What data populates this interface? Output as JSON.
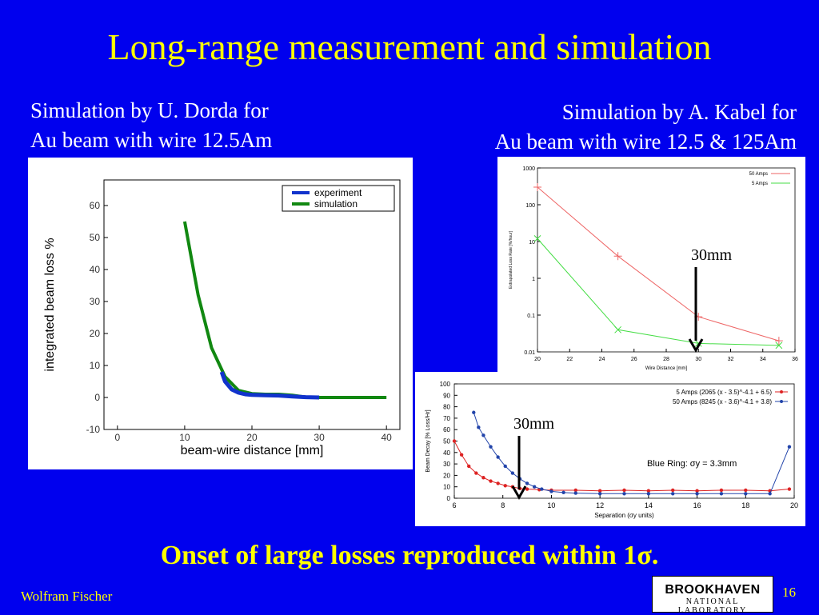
{
  "slide": {
    "title": "Long-range measurement and simulation",
    "caption_left": [
      "Simulation by U. Dorda for",
      "Au beam with wire 12.5Am"
    ],
    "caption_right": [
      "Simulation by A. Kabel for",
      "Au beam with wire 12.5 & 125Am"
    ],
    "bottom_text": "Onset of large losses reproduced within 1σ.",
    "author": "Wolfram Fischer",
    "page_number": "16",
    "logo": {
      "top": "BROOKHAVEN",
      "bottom": "NATIONAL LABORATORY"
    },
    "annotation_30mm": "30mm"
  },
  "chart_data": [
    {
      "type": "line",
      "xlabel": "beam-wire distance [mm]",
      "ylabel": "integrated beam loss %",
      "xlim": [
        -2,
        42
      ],
      "ylim": [
        -10,
        68
      ],
      "xticks": [
        0,
        10,
        20,
        30,
        40
      ],
      "yticks": [
        -10,
        0,
        10,
        20,
        30,
        40,
        50,
        60
      ],
      "grid": false,
      "legend": "top-right",
      "series": [
        {
          "name": "experiment",
          "color": "#1133cc",
          "x": [
            15.5,
            16,
            17,
            18,
            19,
            20,
            22,
            24,
            26,
            28,
            30
          ],
          "y": [
            8,
            5,
            2.5,
            1.5,
            1,
            0.8,
            0.7,
            0.6,
            0.3,
            0.1,
            0
          ]
        },
        {
          "name": "simulation",
          "color": "#118811",
          "x": [
            10,
            12,
            14,
            16,
            18,
            20,
            22,
            24,
            26,
            28,
            30,
            35,
            40
          ],
          "y": [
            55,
            32,
            15.5,
            6.5,
            2.2,
            1.2,
            1.0,
            1.0,
            0.7,
            0.1,
            0,
            0,
            0
          ]
        }
      ]
    },
    {
      "type": "line",
      "xlabel": "Wire Distance [mm]",
      "ylabel": "Extrapolated Loss Rate [%/hour]",
      "xlim": [
        20,
        36
      ],
      "ylim": [
        0.01,
        1000
      ],
      "yscale": "log",
      "xticks": [
        20,
        22,
        24,
        26,
        28,
        30,
        32,
        34,
        36
      ],
      "yticks": [
        0.01,
        0.1,
        1,
        10,
        100,
        1000
      ],
      "yticklabels": [
        "0.01",
        "0.1",
        "1",
        "10",
        "100",
        "1000"
      ],
      "legend": "top-right",
      "series": [
        {
          "name": "50 Amps",
          "color": "#ee6666",
          "marker": "+",
          "x": [
            20,
            25,
            30,
            35
          ],
          "y": [
            300,
            4,
            0.09,
            0.02
          ]
        },
        {
          "name": "5 Amps",
          "color": "#44dd44",
          "marker": "x",
          "x": [
            20,
            25,
            30,
            35
          ],
          "y": [
            12,
            0.04,
            0.017,
            0.015
          ]
        }
      ]
    },
    {
      "type": "scatter",
      "xlabel": "Separation (σy units)",
      "ylabel": "Beam Decay [% Loss/Hr]",
      "xlim": [
        6,
        20
      ],
      "ylim": [
        0,
        100
      ],
      "xticks": [
        6,
        8,
        10,
        12,
        14,
        16,
        18,
        20
      ],
      "yticks": [
        0,
        10,
        20,
        30,
        40,
        50,
        60,
        70,
        80,
        90,
        100
      ],
      "legend": "top-right",
      "annotation": "Blue Ring: σy = 3.3mm",
      "series": [
        {
          "name": "5 Amps (2065 (x - 3.5)^-4.1 + 6.5)",
          "color": "#dd2222",
          "x": [
            6,
            6.3,
            6.6,
            6.9,
            7.2,
            7.5,
            7.8,
            8.1,
            8.4,
            8.7,
            9,
            9.5,
            10,
            11,
            12,
            13,
            14,
            15,
            16,
            17,
            18,
            19,
            19.8
          ],
          "y": [
            50,
            38,
            28,
            22,
            18,
            15,
            13,
            11,
            10,
            8.5,
            8,
            7.5,
            7,
            7,
            6.5,
            7,
            6.5,
            7,
            6.5,
            7,
            7,
            6.5,
            8
          ]
        },
        {
          "name": "50 Amps (8245 (x - 3.6)^-4.1 + 3.8)",
          "color": "#2244aa",
          "x": [
            6.8,
            7,
            7.2,
            7.5,
            7.8,
            8.1,
            8.4,
            8.7,
            9,
            9.3,
            9.6,
            10,
            10.5,
            11,
            12,
            13,
            14,
            15,
            16,
            17,
            18,
            19,
            19.8
          ],
          "y": [
            75,
            62,
            55,
            45,
            36,
            28,
            22,
            17,
            13,
            10,
            8,
            6,
            5,
            4.5,
            4,
            4,
            4,
            4,
            4,
            4,
            4,
            4,
            45
          ]
        }
      ]
    }
  ]
}
